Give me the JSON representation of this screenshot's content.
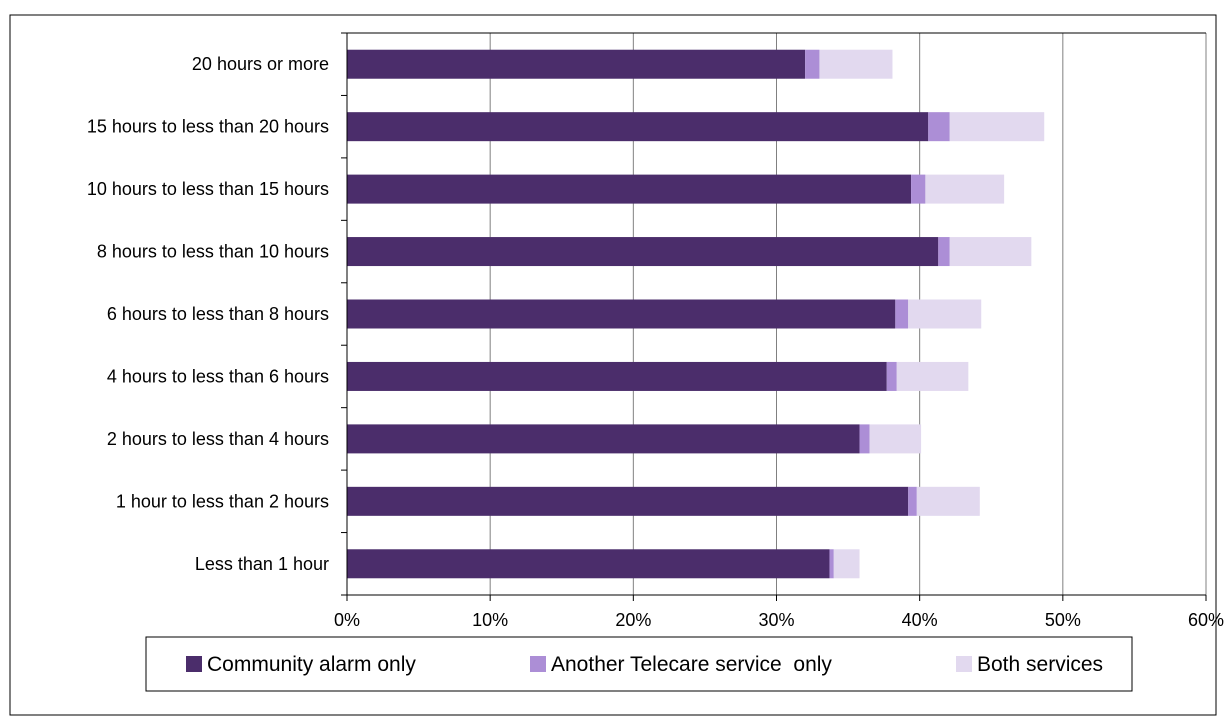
{
  "chart_data": {
    "type": "bar",
    "orientation": "horizontal",
    "stacked": true,
    "categories": [
      "20 hours or more",
      "15 hours to less than 20 hours",
      "10 hours to less than 15 hours",
      "8 hours to less than 10 hours",
      "6 hours to less than 8 hours",
      "4 hours to less than 6 hours",
      "2 hours to less than 4 hours",
      "1 hour to less than 2 hours",
      "Less than 1 hour"
    ],
    "series": [
      {
        "name": "Community alarm only",
        "color": "#4b2d6b",
        "values": [
          32.0,
          40.6,
          39.4,
          41.3,
          38.3,
          37.7,
          35.8,
          39.2,
          33.7
        ]
      },
      {
        "name": "Another Telecare service  only",
        "color": "#ac8ed6",
        "values": [
          1.0,
          1.5,
          1.0,
          0.8,
          0.9,
          0.7,
          0.7,
          0.6,
          0.3
        ]
      },
      {
        "name": "Both services",
        "color": "#e2d9ef",
        "values": [
          5.1,
          6.6,
          5.5,
          5.7,
          5.1,
          5.0,
          3.6,
          4.4,
          1.8
        ]
      }
    ],
    "xlim": [
      0,
      60
    ],
    "xticks": [
      "0%",
      "10%",
      "20%",
      "30%",
      "40%",
      "50%",
      "60%"
    ],
    "grid": "vertical",
    "legend": "bottom",
    "title": "",
    "xlabel": "",
    "ylabel": ""
  }
}
